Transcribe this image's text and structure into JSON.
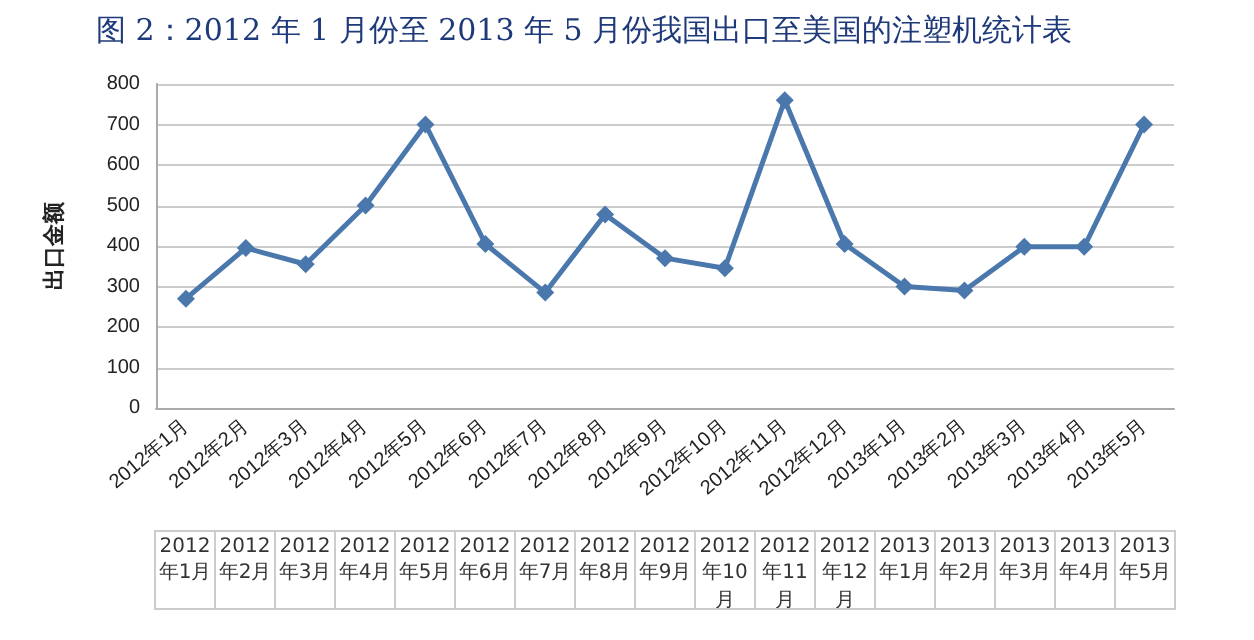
{
  "chart_data": {
    "type": "line",
    "title": "图 2：2012 年 1 月份至 2013 年 5 月份我国出口至美国的注塑机统计表",
    "ylabel": "出口金额",
    "categories": [
      "2012年1月",
      "2012年2月",
      "2012年3月",
      "2012年4月",
      "2012年5月",
      "2012年6月",
      "2012年7月",
      "2012年8月",
      "2012年9月",
      "2012年10月",
      "2012年11月",
      "2012年12月",
      "2013年1月",
      "2013年2月",
      "2013年3月",
      "2013年4月",
      "2013年5月"
    ],
    "series": [
      {
        "color": "#4a78ad",
        "values": [
          270,
          395,
          355,
          500,
          700,
          405,
          285,
          478,
          370,
          345,
          760,
          405,
          300,
          290,
          398,
          398,
          700
        ]
      }
    ],
    "ylim": [
      0,
      800
    ],
    "yticks": [
      0,
      100,
      200,
      300,
      400,
      500,
      600,
      700,
      800
    ],
    "grid": "y",
    "marker": "diamond",
    "line_style": "solid"
  }
}
